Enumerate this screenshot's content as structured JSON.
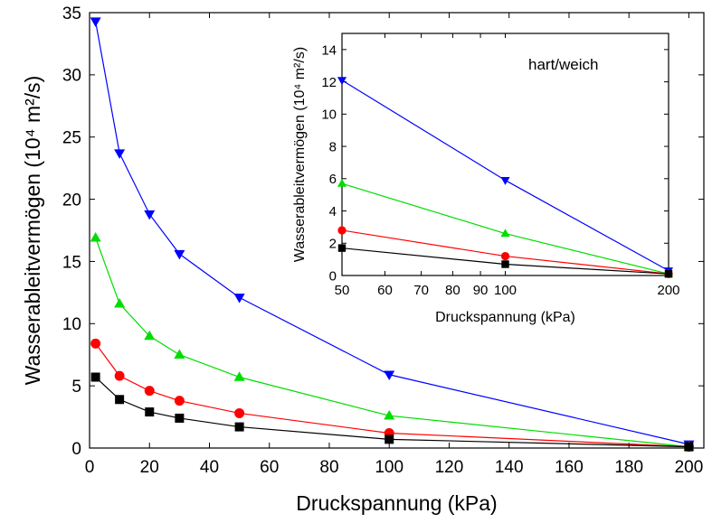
{
  "chart_data": [
    {
      "type": "line",
      "xlabel": "Druckspannung (kPa)",
      "ylabel": "Wasserableitvermögen (10⁴ m²/s)",
      "xlim": [
        0,
        205
      ],
      "ylim": [
        0,
        35
      ],
      "xticks": [
        0,
        20,
        40,
        60,
        80,
        100,
        120,
        140,
        160,
        180,
        200
      ],
      "yticks": [
        0,
        5,
        10,
        15,
        20,
        25,
        30,
        35
      ],
      "grid": false,
      "series": [
        {
          "marker": "triangle-down",
          "color": "#0000ff",
          "x": [
            2,
            10,
            20,
            30,
            50,
            100,
            200
          ],
          "y": [
            34.3,
            23.7,
            18.8,
            15.6,
            12.1,
            5.9,
            0.3
          ]
        },
        {
          "marker": "triangle-up",
          "color": "#00dd00",
          "x": [
            2,
            10,
            20,
            30,
            50,
            100,
            200
          ],
          "y": [
            16.9,
            11.6,
            9.0,
            7.5,
            5.7,
            2.6,
            0.1
          ]
        },
        {
          "marker": "circle",
          "color": "#ff0000",
          "x": [
            2,
            10,
            20,
            30,
            50,
            100,
            200
          ],
          "y": [
            8.4,
            5.8,
            4.6,
            3.8,
            2.8,
            1.2,
            0.1
          ]
        },
        {
          "marker": "square",
          "color": "#000000",
          "x": [
            2,
            10,
            20,
            30,
            50,
            100,
            200
          ],
          "y": [
            5.7,
            3.9,
            2.9,
            2.4,
            1.7,
            0.7,
            0.1
          ]
        }
      ]
    },
    {
      "type": "line",
      "xlabel": "Druckspannung (kPa)",
      "ylabel": "Wasserableitvermögen (10⁴ m²/s)",
      "annotation": "hart/weich",
      "xscale": "log",
      "xlim": [
        50,
        200
      ],
      "ylim": [
        0,
        15
      ],
      "xticks": [
        50,
        60,
        70,
        80,
        90,
        100,
        200
      ],
      "xticklabels": [
        "50",
        "60",
        "70",
        "80",
        "90",
        "100",
        "200"
      ],
      "yticks": [
        0,
        2,
        4,
        6,
        8,
        10,
        12,
        14
      ],
      "grid": false,
      "series": [
        {
          "marker": "triangle-down",
          "color": "#0000ff",
          "x": [
            50,
            100,
            200
          ],
          "y": [
            12.1,
            5.9,
            0.3
          ]
        },
        {
          "marker": "triangle-up",
          "color": "#00dd00",
          "x": [
            50,
            100,
            200
          ],
          "y": [
            5.7,
            2.6,
            0.1
          ]
        },
        {
          "marker": "circle",
          "color": "#ff0000",
          "x": [
            50,
            100,
            200
          ],
          "y": [
            2.8,
            1.2,
            0.1
          ]
        },
        {
          "marker": "square",
          "color": "#000000",
          "x": [
            50,
            100,
            200
          ],
          "y": [
            1.7,
            0.7,
            0.1
          ]
        }
      ]
    }
  ]
}
